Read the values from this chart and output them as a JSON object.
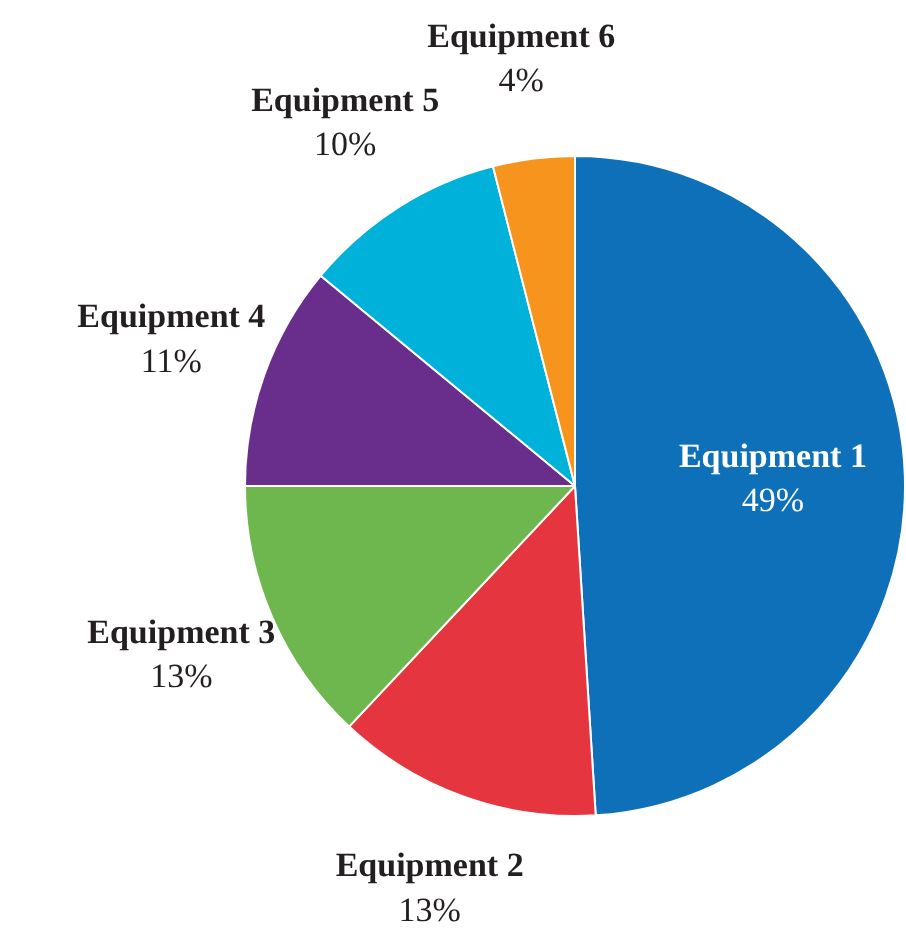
{
  "chart_data": {
    "type": "pie",
    "categories": [
      "Equipment 1",
      "Equipment 2",
      "Equipment 3",
      "Equipment 4",
      "Equipment 5",
      "Equipment 6"
    ],
    "values": [
      49,
      13,
      13,
      11,
      10,
      4
    ],
    "value_labels": [
      "49%",
      "13%",
      "13%",
      "11%",
      "10%",
      "4%"
    ],
    "colors": [
      "#0e70b8",
      "#e5363f",
      "#6db74e",
      "#692e8c",
      "#00b2da",
      "#f7941d"
    ],
    "legend": false
  }
}
